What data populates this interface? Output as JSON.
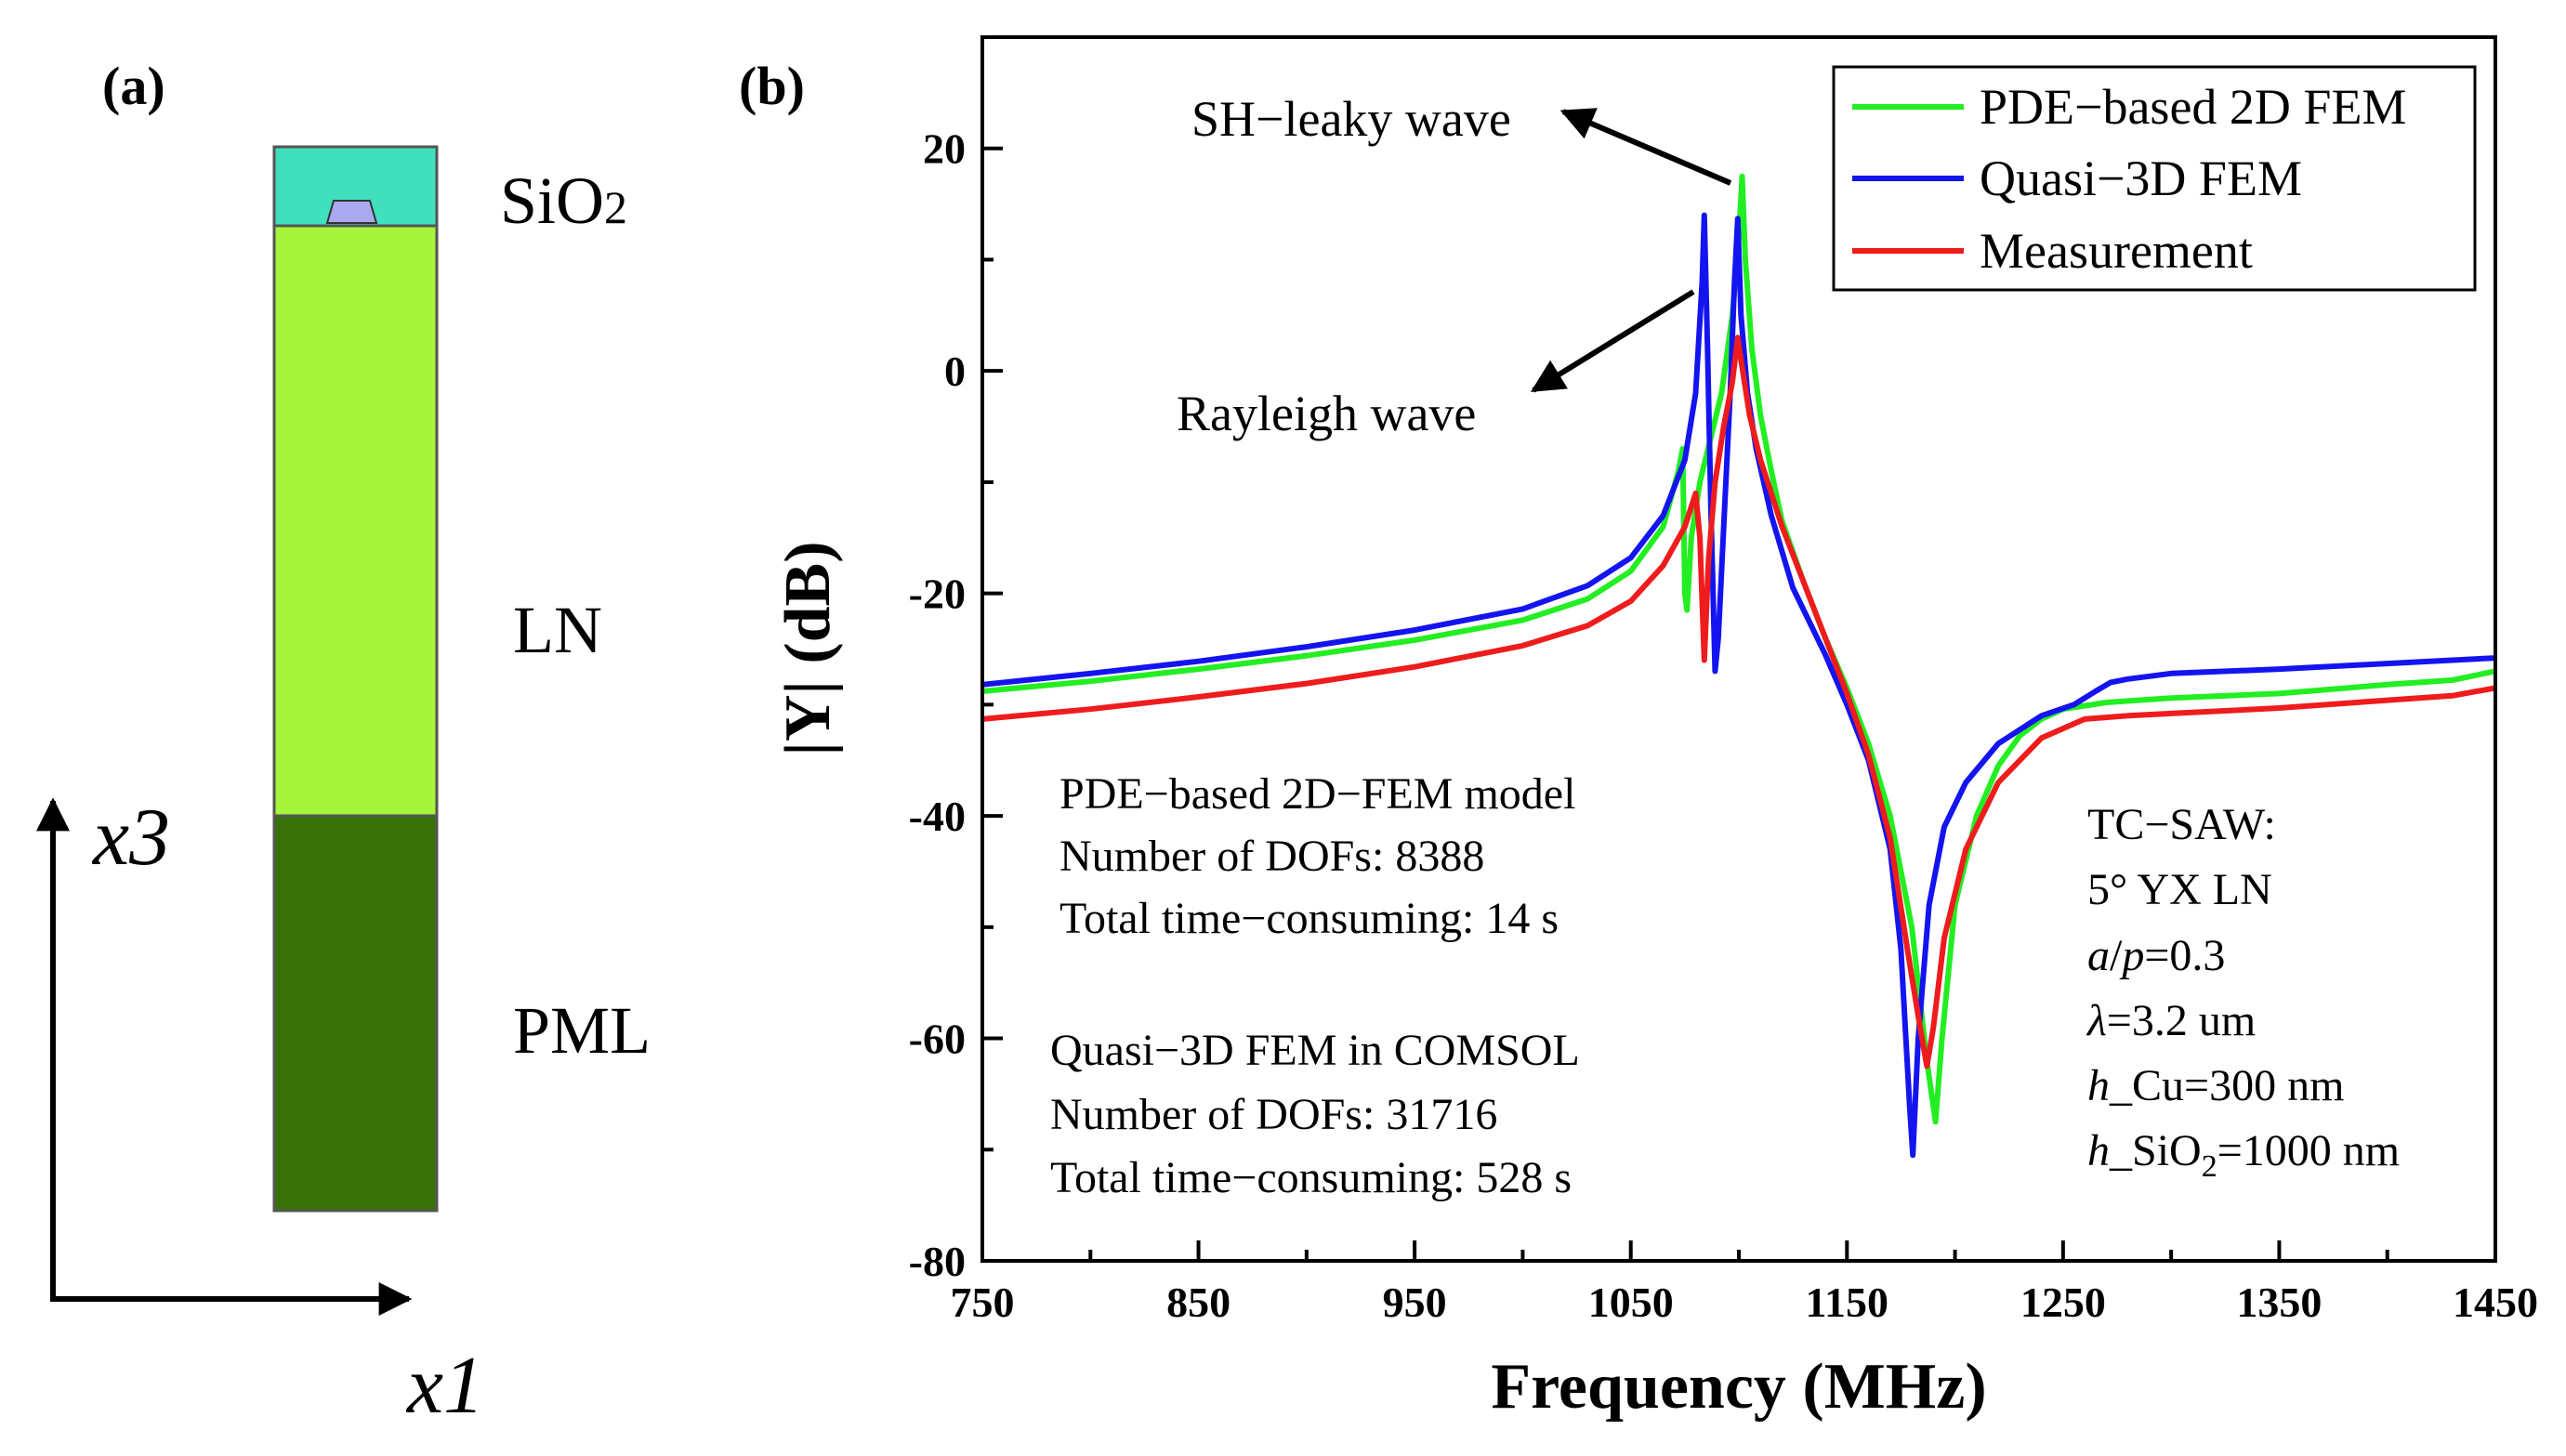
{
  "panel_a": {
    "label": "(a)",
    "layers": [
      {
        "name": "SiO2",
        "label_main": "SiO",
        "label_sub": "2",
        "color": "#40e0bf"
      },
      {
        "name": "LN",
        "label_main": "LN",
        "label_sub": "",
        "color": "#a6f43c"
      },
      {
        "name": "PML",
        "label_main": "PML",
        "label_sub": "",
        "color": "#387108"
      }
    ],
    "electrode_color": "#a9a9ef",
    "x_axis_label": "x1",
    "y_axis_label": "x3"
  },
  "chart_data": {
    "type": "line",
    "panel_label": "(b)",
    "title": "",
    "xlabel": "Frequency (MHz)",
    "ylabel": "|Y| (dB)",
    "xlim": [
      750,
      1450
    ],
    "ylim": [
      -80,
      30
    ],
    "xticks": [
      750,
      850,
      950,
      1050,
      1150,
      1250,
      1350,
      1450
    ],
    "yticks": [
      -80,
      -60,
      -40,
      -20,
      0,
      20
    ],
    "ytick_labels": [
      "-80",
      "-60",
      "-40",
      "-20",
      "0",
      "20"
    ],
    "legend_position": "top-right",
    "series": [
      {
        "name": "PDE−based 2D FEM",
        "color": "#22ee22",
        "points": [
          [
            750,
            -28.8
          ],
          [
            800,
            -27.9
          ],
          [
            850,
            -26.8
          ],
          [
            900,
            -25.6
          ],
          [
            950,
            -24.2
          ],
          [
            1000,
            -22.4
          ],
          [
            1030,
            -20.5
          ],
          [
            1050,
            -18
          ],
          [
            1065,
            -14
          ],
          [
            1072,
            -9
          ],
          [
            1074,
            -7
          ],
          [
            1075,
            -20
          ],
          [
            1076,
            -21.5
          ],
          [
            1078,
            -15
          ],
          [
            1082,
            -10
          ],
          [
            1087,
            -6
          ],
          [
            1092,
            -2
          ],
          [
            1097,
            5
          ],
          [
            1100,
            12
          ],
          [
            1101.5,
            17.5
          ],
          [
            1103,
            10
          ],
          [
            1106,
            2
          ],
          [
            1110,
            -4
          ],
          [
            1115,
            -9
          ],
          [
            1120,
            -13.5
          ],
          [
            1130,
            -19
          ],
          [
            1140,
            -24
          ],
          [
            1150,
            -28.5
          ],
          [
            1160,
            -33.5
          ],
          [
            1170,
            -40
          ],
          [
            1180,
            -50
          ],
          [
            1187,
            -62
          ],
          [
            1191,
            -67.5
          ],
          [
            1194,
            -60
          ],
          [
            1200,
            -48
          ],
          [
            1210,
            -40
          ],
          [
            1220,
            -35.5
          ],
          [
            1230,
            -32.8
          ],
          [
            1240,
            -31.3
          ],
          [
            1250,
            -30.4
          ],
          [
            1270,
            -29.8
          ],
          [
            1300,
            -29.4
          ],
          [
            1350,
            -29
          ],
          [
            1400,
            -28.2
          ],
          [
            1430,
            -27.8
          ],
          [
            1450,
            -27
          ]
        ]
      },
      {
        "name": "Quasi−3D FEM",
        "color": "#1414f0",
        "points": [
          [
            750,
            -28.2
          ],
          [
            800,
            -27.2
          ],
          [
            850,
            -26.1
          ],
          [
            900,
            -24.8
          ],
          [
            950,
            -23.3
          ],
          [
            1000,
            -21.4
          ],
          [
            1030,
            -19.3
          ],
          [
            1050,
            -16.8
          ],
          [
            1065,
            -13
          ],
          [
            1075,
            -8
          ],
          [
            1080,
            -2
          ],
          [
            1083,
            8
          ],
          [
            1084,
            14
          ],
          [
            1085.5,
            2
          ],
          [
            1087,
            -12
          ],
          [
            1089,
            -27
          ],
          [
            1090.5,
            -24
          ],
          [
            1093,
            -14
          ],
          [
            1096,
            -2
          ],
          [
            1098,
            8
          ],
          [
            1099.5,
            13.7
          ],
          [
            1101,
            5
          ],
          [
            1104,
            -2
          ],
          [
            1108,
            -7
          ],
          [
            1115,
            -13
          ],
          [
            1125,
            -19.5
          ],
          [
            1140,
            -25.5
          ],
          [
            1150,
            -30
          ],
          [
            1160,
            -35
          ],
          [
            1170,
            -43
          ],
          [
            1175,
            -52
          ],
          [
            1179,
            -66
          ],
          [
            1180.5,
            -70.5
          ],
          [
            1183,
            -60
          ],
          [
            1188,
            -48
          ],
          [
            1195,
            -41
          ],
          [
            1205,
            -37
          ],
          [
            1220,
            -33.5
          ],
          [
            1240,
            -31
          ],
          [
            1255,
            -30
          ],
          [
            1265,
            -28.8
          ],
          [
            1272,
            -28
          ],
          [
            1280,
            -27.7
          ],
          [
            1300,
            -27.2
          ],
          [
            1350,
            -26.8
          ],
          [
            1400,
            -26.3
          ],
          [
            1450,
            -25.8
          ]
        ]
      },
      {
        "name": "Measurement",
        "color": "#ee1c1c",
        "points": [
          [
            750,
            -31.3
          ],
          [
            800,
            -30.4
          ],
          [
            850,
            -29.3
          ],
          [
            900,
            -28.1
          ],
          [
            950,
            -26.6
          ],
          [
            1000,
            -24.7
          ],
          [
            1030,
            -22.9
          ],
          [
            1050,
            -20.7
          ],
          [
            1065,
            -17.5
          ],
          [
            1075,
            -14
          ],
          [
            1080,
            -11
          ],
          [
            1082,
            -15
          ],
          [
            1084,
            -26
          ],
          [
            1086,
            -17
          ],
          [
            1089,
            -10
          ],
          [
            1093,
            -5
          ],
          [
            1097,
            -1
          ],
          [
            1099.5,
            3
          ],
          [
            1101,
            1
          ],
          [
            1105,
            -4
          ],
          [
            1110,
            -8
          ],
          [
            1120,
            -14
          ],
          [
            1130,
            -19
          ],
          [
            1140,
            -24
          ],
          [
            1150,
            -29
          ],
          [
            1160,
            -34.5
          ],
          [
            1170,
            -42
          ],
          [
            1178,
            -52
          ],
          [
            1183,
            -58
          ],
          [
            1187,
            -62.5
          ],
          [
            1190,
            -59
          ],
          [
            1195,
            -51
          ],
          [
            1205,
            -43
          ],
          [
            1220,
            -37
          ],
          [
            1240,
            -33
          ],
          [
            1260,
            -31.3
          ],
          [
            1280,
            -31
          ],
          [
            1300,
            -30.8
          ],
          [
            1350,
            -30.3
          ],
          [
            1400,
            -29.6
          ],
          [
            1430,
            -29.2
          ],
          [
            1450,
            -28.5
          ]
        ]
      }
    ],
    "annotations": {
      "sh_leaky_wave": "SH−leaky wave",
      "rayleigh_wave": "Rayleigh wave",
      "pde_block": [
        "PDE−based 2D−FEM model",
        "Number of DOFs: 8388",
        "Total time−consuming: 14 s"
      ],
      "quasi_block": [
        "Quasi−3D FEM in COMSOL",
        "Number of DOFs: 31716",
        "Total time−consuming: 528 s"
      ],
      "tcsaw": {
        "title": "TC−SAW:",
        "orientation": "5° YX LN",
        "ap_italic": "a",
        "ap_slash": "/",
        "ap_italic2": "p",
        "ap_value": "=0.3",
        "lambda_italic": "λ",
        "lambda_value": "=3.2 um",
        "hcu_italic": "h",
        "hcu_value": "_Cu=300 nm",
        "hsio2_italic": "h",
        "hsio2_main": "_SiO",
        "hsio2_sub": "2",
        "hsio2_value": "=1000 nm"
      }
    }
  }
}
